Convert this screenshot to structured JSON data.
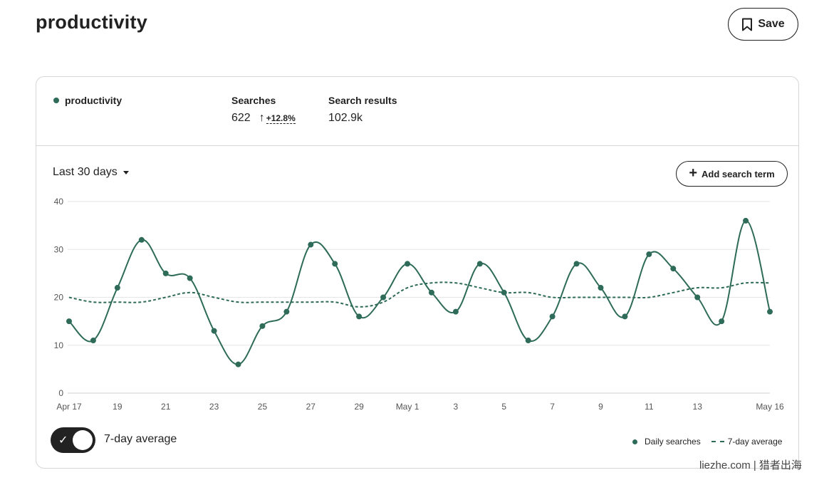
{
  "page": {
    "title": "productivity",
    "save_label": "Save"
  },
  "summary": {
    "term": "productivity",
    "searches_label": "Searches",
    "searches_value": "622",
    "trend_arrow": "↑",
    "searches_change": "+12.8%",
    "results_label": "Search results",
    "results_value": "102.9k"
  },
  "controls": {
    "range_label": "Last 30 days",
    "add_term_label": "Add search term",
    "toggle_label": "7-day average",
    "toggle_on": true
  },
  "legend": {
    "daily_label": "Daily searches",
    "average_label": "7-day average"
  },
  "watermark": "liezhe.com | 猎者出海",
  "colors": {
    "series": "#2e6b58",
    "grid": "#e6e6e6",
    "text": "#222222"
  },
  "chart_data": {
    "type": "line",
    "title": "",
    "xlabel": "",
    "ylabel": "",
    "ylim": [
      0,
      40
    ],
    "yticks": [
      0,
      10,
      20,
      30,
      40
    ],
    "grid": true,
    "legend_position": "bottom-right",
    "x": [
      "Apr 17",
      "Apr 18",
      "Apr 19",
      "Apr 20",
      "Apr 21",
      "Apr 22",
      "Apr 23",
      "Apr 24",
      "Apr 25",
      "Apr 26",
      "Apr 27",
      "Apr 28",
      "Apr 29",
      "Apr 30",
      "May 1",
      "May 2",
      "May 3",
      "May 4",
      "May 5",
      "May 6",
      "May 7",
      "May 8",
      "May 9",
      "May 10",
      "May 11",
      "May 12",
      "May 13",
      "May 14",
      "May 15",
      "May 16"
    ],
    "xtick_labels": [
      {
        "index": 0,
        "label": "Apr 17"
      },
      {
        "index": 2,
        "label": "19"
      },
      {
        "index": 4,
        "label": "21"
      },
      {
        "index": 6,
        "label": "23"
      },
      {
        "index": 8,
        "label": "25"
      },
      {
        "index": 10,
        "label": "27"
      },
      {
        "index": 12,
        "label": "29"
      },
      {
        "index": 14,
        "label": "May 1"
      },
      {
        "index": 16,
        "label": "3"
      },
      {
        "index": 18,
        "label": "5"
      },
      {
        "index": 20,
        "label": "7"
      },
      {
        "index": 22,
        "label": "9"
      },
      {
        "index": 24,
        "label": "11"
      },
      {
        "index": 26,
        "label": "13"
      },
      {
        "index": 29,
        "label": "May 16"
      }
    ],
    "series": [
      {
        "name": "Daily searches",
        "style": "solid-with-markers",
        "values": [
          15,
          11,
          22,
          32,
          25,
          24,
          13,
          6,
          14,
          17,
          31,
          27,
          16,
          20,
          27,
          21,
          17,
          27,
          21,
          11,
          16,
          27,
          22,
          16,
          29,
          26,
          20,
          15,
          36,
          17
        ]
      },
      {
        "name": "7-day average",
        "style": "dashed",
        "values": [
          20,
          19,
          19,
          19,
          20,
          21,
          20,
          19,
          19,
          19,
          19,
          19,
          18,
          19,
          22,
          23,
          23,
          22,
          21,
          21,
          20,
          20,
          20,
          20,
          20,
          21,
          22,
          22,
          23,
          23
        ]
      }
    ]
  }
}
